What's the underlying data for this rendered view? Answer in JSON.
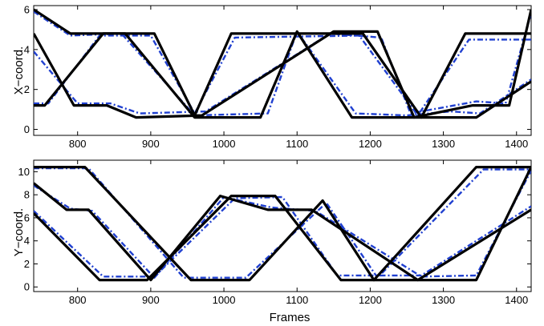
{
  "chart_data": [
    {
      "type": "line",
      "ylabel": "X−coord.",
      "xlabel": "",
      "xlim": [
        740,
        1420
      ],
      "ylim": [
        -0.3,
        6.2
      ],
      "xticks": [
        800,
        900,
        1000,
        1100,
        1200,
        1300,
        1400
      ],
      "yticks": [
        0,
        2,
        4,
        6
      ],
      "colors": {
        "ground_truth": "#000000",
        "estimate": "#2040d0"
      },
      "series": [
        {
          "style": "solid",
          "x": [
            740,
            755,
            835,
            905,
            960,
            1010,
            1190,
            1270,
            1330,
            1420
          ],
          "y": [
            1.2,
            1.2,
            4.8,
            4.8,
            0.7,
            4.8,
            4.8,
            0.6,
            4.8,
            4.8
          ]
        },
        {
          "style": "solid",
          "x": [
            740,
            790,
            865,
            960,
            1050,
            1100,
            1175,
            1245,
            1305,
            1345,
            1420
          ],
          "y": [
            6.0,
            4.8,
            4.8,
            0.6,
            0.6,
            4.9,
            0.6,
            0.6,
            0.6,
            0.6,
            2.4
          ]
        },
        {
          "style": "solid",
          "x": [
            740,
            795,
            840,
            880,
            970,
            1150,
            1210,
            1260,
            1340,
            1390,
            1420
          ],
          "y": [
            4.8,
            1.2,
            1.2,
            0.6,
            0.7,
            4.9,
            4.9,
            0.6,
            1.2,
            1.2,
            6.0
          ]
        },
        {
          "style": "dashdot",
          "x": [
            740,
            760,
            830,
            900,
            960,
            1015,
            1185,
            1265,
            1335,
            1420
          ],
          "y": [
            1.3,
            1.3,
            4.7,
            4.7,
            0.8,
            4.6,
            4.7,
            0.7,
            4.5,
            4.5
          ]
        },
        {
          "style": "dashdot",
          "x": [
            740,
            790,
            860,
            960,
            1060,
            1100,
            1180,
            1250,
            1310,
            1350,
            1420
          ],
          "y": [
            5.9,
            4.7,
            4.8,
            0.7,
            0.8,
            4.9,
            0.8,
            0.7,
            0.9,
            0.8,
            2.5
          ]
        },
        {
          "style": "dashdot",
          "x": [
            740,
            800,
            845,
            885,
            975,
            1145,
            1215,
            1255,
            1345,
            1385,
            1420
          ],
          "y": [
            3.9,
            1.3,
            1.3,
            0.8,
            0.9,
            4.8,
            4.6,
            0.8,
            1.4,
            1.3,
            5.8
          ]
        }
      ]
    },
    {
      "type": "line",
      "ylabel": "Y−coord.",
      "xlabel": "Frames",
      "xlim": [
        740,
        1420
      ],
      "ylim": [
        -0.4,
        11.0
      ],
      "xticks": [
        800,
        900,
        1000,
        1100,
        1200,
        1300,
        1400
      ],
      "yticks": [
        0,
        2,
        4,
        6,
        8,
        10
      ],
      "colors": {
        "ground_truth": "#000000",
        "estimate": "#2040d0"
      },
      "series": [
        {
          "style": "solid",
          "x": [
            740,
            810,
            955,
            1035,
            1135,
            1205,
            1345,
            1420
          ],
          "y": [
            10.4,
            10.4,
            0.6,
            0.6,
            7.5,
            0.6,
            10.4,
            10.4
          ]
        },
        {
          "style": "solid",
          "x": [
            740,
            785,
            815,
            900,
            995,
            1060,
            1120,
            1265,
            1345,
            1420
          ],
          "y": [
            9.0,
            6.7,
            6.7,
            0.6,
            7.9,
            6.7,
            6.7,
            0.6,
            0.6,
            10.4
          ]
        },
        {
          "style": "solid",
          "x": [
            740,
            830,
            895,
            1010,
            1070,
            1160,
            1265,
            1420
          ],
          "y": [
            6.4,
            0.6,
            0.6,
            7.9,
            7.9,
            0.6,
            0.6,
            6.7
          ]
        },
        {
          "style": "dashdot",
          "x": [
            740,
            815,
            945,
            1030,
            1140,
            1210,
            1355,
            1420
          ],
          "y": [
            10.3,
            10.3,
            0.8,
            0.8,
            7.3,
            0.8,
            10.2,
            10.2
          ]
        },
        {
          "style": "dashdot",
          "x": [
            740,
            790,
            820,
            905,
            1000,
            1065,
            1125,
            1270,
            1345,
            1420
          ],
          "y": [
            8.8,
            6.8,
            6.6,
            0.8,
            7.8,
            6.9,
            6.6,
            0.9,
            1.0,
            10.1
          ]
        },
        {
          "style": "dashdot",
          "x": [
            740,
            835,
            905,
            1015,
            1080,
            1155,
            1270,
            1420
          ],
          "y": [
            6.6,
            0.9,
            0.9,
            7.7,
            7.8,
            1.0,
            1.0,
            7.0
          ]
        }
      ]
    }
  ]
}
